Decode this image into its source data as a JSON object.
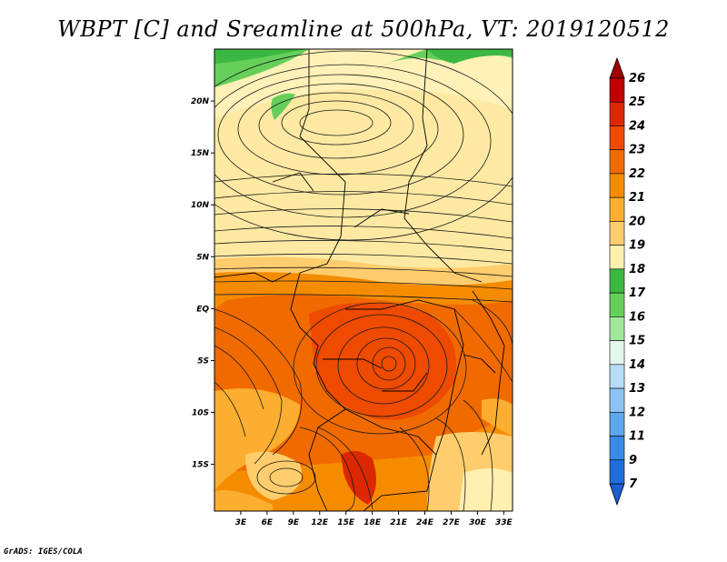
{
  "title": "WBPT [C] and Sreamline at 500hPa, VT: 2019120512",
  "footer": "GrADS: IGES/COLA",
  "map": {
    "lat_labels": [
      "20N",
      "15N",
      "10N",
      "5N",
      "EQ",
      "5S",
      "10S",
      "15S"
    ],
    "lat_values": [
      20,
      15,
      10,
      5,
      0,
      -5,
      -10,
      -15
    ],
    "lon_labels": [
      "3E",
      "6E",
      "9E",
      "12E",
      "15E",
      "18E",
      "21E",
      "24E",
      "27E",
      "30E",
      "33E"
    ],
    "lon_values": [
      3,
      6,
      9,
      12,
      15,
      18,
      21,
      24,
      27,
      30,
      33
    ],
    "lat_range": [
      -19.5,
      25
    ],
    "lon_range": [
      0,
      34
    ]
  },
  "colorbar": {
    "labels": [
      "26",
      "25",
      "24",
      "23",
      "22",
      "21",
      "20",
      "19",
      "18",
      "17",
      "16",
      "15",
      "14",
      "13",
      "12",
      "11",
      "9",
      "7"
    ],
    "colors": [
      "#c00000",
      "#dc2800",
      "#ee4a00",
      "#f06a00",
      "#f58c00",
      "#fbae30",
      "#ffcd6d",
      "#fff0b0",
      "#3cb842",
      "#66cf5a",
      "#a2e89a",
      "#e3f7ee",
      "#b7dcf6",
      "#8dc3f4",
      "#5ea6ee",
      "#3a89e6",
      "#1f6ddb"
    ],
    "top_arrow_color": "#a00000",
    "bottom_arrow_color": "#1c5fd0"
  }
}
